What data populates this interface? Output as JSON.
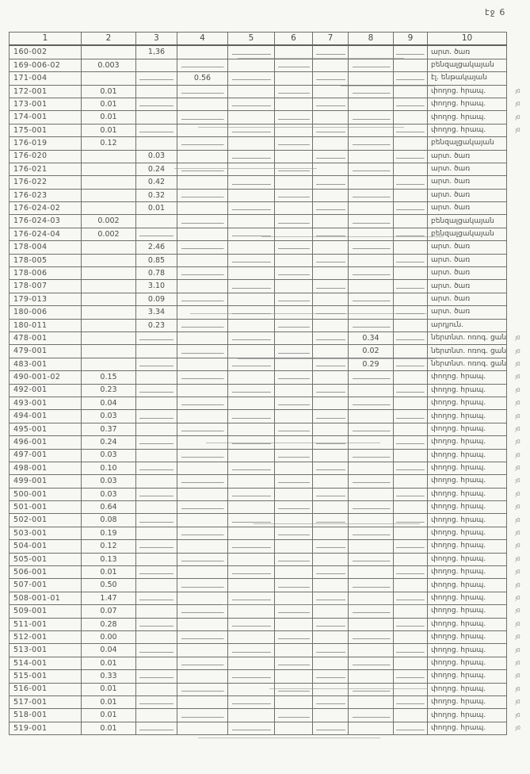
{
  "page": {
    "label": "էջ 6"
  },
  "colors": {
    "paper": "#f7f7f4",
    "ink": "#4d4d4d",
    "line": "#6f6f6f"
  },
  "table": {
    "headers": [
      "1",
      "2",
      "3",
      "4",
      "5",
      "6",
      "7",
      "8",
      "9",
      "10"
    ],
    "rows": [
      {
        "cells": [
          "160-002",
          "",
          "1,36",
          "",
          "",
          "",
          "",
          "",
          "",
          "արտ. ծառ"
        ],
        "mark": ""
      },
      {
        "cells": [
          "169-006-02",
          "0.003",
          "",
          "",
          "",
          "",
          "",
          "",
          "",
          "բենզալցակայան"
        ],
        "mark": ""
      },
      {
        "cells": [
          "171-004",
          "",
          "",
          "0.56",
          "",
          "",
          "",
          "",
          "",
          "էլ. ենթակայան"
        ],
        "mark": ""
      },
      {
        "cells": [
          "172-001",
          "0.01",
          "",
          "",
          "",
          "",
          "",
          "",
          "",
          "փողոց. հրապ."
        ],
        "mark": "յ0"
      },
      {
        "cells": [
          "173-001",
          "0.01",
          "",
          "",
          "",
          "",
          "",
          "",
          "",
          "փողոց. հրապ."
        ],
        "mark": "յ0"
      },
      {
        "cells": [
          "174-001",
          "0.01",
          "",
          "",
          "",
          "",
          "",
          "",
          "",
          "փողոց. հրապ."
        ],
        "mark": "յ0"
      },
      {
        "cells": [
          "175-001",
          "0.01",
          "",
          "",
          "",
          "",
          "",
          "",
          "",
          "փողոց. հրապ."
        ],
        "mark": "յ0"
      },
      {
        "cells": [
          "176-019",
          "0.12",
          "",
          "",
          "",
          "",
          "",
          "",
          "",
          "բենզալցակայան"
        ],
        "mark": ""
      },
      {
        "cells": [
          "176-020",
          "",
          "0.03",
          "",
          "",
          "",
          "",
          "",
          "",
          "արտ. ծառ"
        ],
        "mark": ""
      },
      {
        "cells": [
          "176-021",
          "",
          "0.24",
          "",
          "",
          "",
          "",
          "",
          "",
          "արտ. ծառ"
        ],
        "mark": ""
      },
      {
        "cells": [
          "176-022",
          "",
          "0.42",
          "",
          "",
          "",
          "",
          "",
          "",
          "արտ. ծառ"
        ],
        "mark": ""
      },
      {
        "cells": [
          "176-023",
          "",
          "0.32",
          "",
          "",
          "",
          "",
          "",
          "",
          "արտ. ծառ"
        ],
        "mark": ""
      },
      {
        "cells": [
          "176-024-02",
          "",
          "0.01",
          "",
          "",
          "",
          "",
          "",
          "",
          "արտ. ծառ"
        ],
        "mark": ""
      },
      {
        "cells": [
          "176-024-03",
          "0.002",
          "",
          "",
          "",
          "",
          "",
          "",
          "",
          "բենզալցակայան"
        ],
        "mark": ""
      },
      {
        "cells": [
          "176-024-04",
          "0.002",
          "",
          "",
          "",
          "",
          "",
          "",
          "",
          "բենզալցակայան"
        ],
        "mark": ""
      },
      {
        "cells": [
          "178-004",
          "",
          "2.46",
          "",
          "",
          "",
          "",
          "",
          "",
          "արտ. ծառ"
        ],
        "mark": ""
      },
      {
        "cells": [
          "178-005",
          "",
          "0.85",
          "",
          "",
          "",
          "",
          "",
          "",
          "արտ. ծառ"
        ],
        "mark": ""
      },
      {
        "cells": [
          "178-006",
          "",
          "0.78",
          "",
          "",
          "",
          "",
          "",
          "",
          "արտ. ծառ"
        ],
        "mark": ""
      },
      {
        "cells": [
          "178-007",
          "",
          "3.10",
          "",
          "",
          "",
          "",
          "",
          "",
          "արտ. ծառ"
        ],
        "mark": ""
      },
      {
        "cells": [
          "179-013",
          "",
          "0.09",
          "",
          "",
          "",
          "",
          "",
          "",
          "արտ. ծառ"
        ],
        "mark": ""
      },
      {
        "cells": [
          "180-006",
          "",
          "3.34",
          "",
          "",
          "",
          "",
          "",
          "",
          "արտ. ծառ"
        ],
        "mark": ""
      },
      {
        "cells": [
          "180-011",
          "",
          "0.23",
          "",
          "",
          "",
          "",
          "",
          "",
          "արդյուն."
        ],
        "mark": ""
      },
      {
        "cells": [
          "478-001",
          "",
          "",
          "",
          "",
          "",
          "",
          "0.34",
          "",
          "ներտնտ. ոռոգ. ցանց"
        ],
        "mark": "յ0"
      },
      {
        "cells": [
          "479-001",
          "",
          "",
          "",
          "",
          "",
          "",
          "0.02",
          "",
          "ներտնտ. ոռոգ. ցանց"
        ],
        "mark": "յ0"
      },
      {
        "cells": [
          "483-001",
          "",
          "",
          "",
          "",
          "",
          "",
          "0.29",
          "",
          "ներտնտ. ոռոգ. ցանց"
        ],
        "mark": "յ0"
      },
      {
        "cells": [
          "490-001-02",
          "0.15",
          "",
          "",
          "",
          "",
          "",
          "",
          "",
          "փողոց. հրապ."
        ],
        "mark": "յ0"
      },
      {
        "cells": [
          "492-001",
          "0.23",
          "",
          "",
          "",
          "",
          "",
          "",
          "",
          "փողոց. հրապ."
        ],
        "mark": "յ0"
      },
      {
        "cells": [
          "493-001",
          "0.04",
          "",
          "",
          "",
          "",
          "",
          "",
          "",
          "փողոց. հրապ."
        ],
        "mark": "յ0"
      },
      {
        "cells": [
          "494-001",
          "0.03",
          "",
          "",
          "",
          "",
          "",
          "",
          "",
          "փողոց. հրապ."
        ],
        "mark": "յ0"
      },
      {
        "cells": [
          "495-001",
          "0.37",
          "",
          "",
          "",
          "",
          "",
          "",
          "",
          "փողոց. հրապ."
        ],
        "mark": "յ0"
      },
      {
        "cells": [
          "496-001",
          "0.24",
          "",
          "",
          "",
          "",
          "",
          "",
          "",
          "փողոց. հրապ."
        ],
        "mark": "յ0"
      },
      {
        "cells": [
          "497-001",
          "0.03",
          "",
          "",
          "",
          "",
          "",
          "",
          "",
          "փողոց. հրապ."
        ],
        "mark": "յ0"
      },
      {
        "cells": [
          "498-001",
          "0.10",
          "",
          "",
          "",
          "",
          "",
          "",
          "",
          "փողոց. հրապ."
        ],
        "mark": "յ0"
      },
      {
        "cells": [
          "499-001",
          "0.03",
          "",
          "",
          "",
          "",
          "",
          "",
          "",
          "փողոց. հրապ."
        ],
        "mark": "յ0"
      },
      {
        "cells": [
          "500-001",
          "0.03",
          "",
          "",
          "",
          "",
          "",
          "",
          "",
          "փողոց. հրապ."
        ],
        "mark": "յ0"
      },
      {
        "cells": [
          "501-001",
          "0.64",
          "",
          "",
          "",
          "",
          "",
          "",
          "",
          "փողոց. հրապ."
        ],
        "mark": "յ0"
      },
      {
        "cells": [
          "502-001",
          "0.08",
          "",
          "",
          "",
          "",
          "",
          "",
          "",
          "փողոց. հրապ."
        ],
        "mark": "յ0"
      },
      {
        "cells": [
          "503-001",
          "0.19",
          "",
          "",
          "",
          "",
          "",
          "",
          "",
          "փողոց. հրապ."
        ],
        "mark": "յ0"
      },
      {
        "cells": [
          "504-001",
          "0.12",
          "",
          "",
          "",
          "",
          "",
          "",
          "",
          "փողոց. հրապ."
        ],
        "mark": "յ0"
      },
      {
        "cells": [
          "505-001",
          "0.13",
          "",
          "",
          "",
          "",
          "",
          "",
          "",
          "փողոց. հրապ."
        ],
        "mark": "յ0"
      },
      {
        "cells": [
          "506-001",
          "0.01",
          "",
          "",
          "",
          "",
          "",
          "",
          "",
          "փողոց. հրապ."
        ],
        "mark": "յ0"
      },
      {
        "cells": [
          "507-001",
          "0.50",
          "",
          "",
          "",
          "",
          "",
          "",
          "",
          "փողոց. հրապ."
        ],
        "mark": "յ0"
      },
      {
        "cells": [
          "508-001-01",
          "1.47",
          "",
          "",
          "",
          "",
          "",
          "",
          "",
          "փողոց. հրապ."
        ],
        "mark": "յ0"
      },
      {
        "cells": [
          "509-001",
          "0.07",
          "",
          "",
          "",
          "",
          "",
          "",
          "",
          "փողոց. հրապ."
        ],
        "mark": "յ0"
      },
      {
        "cells": [
          "511-001",
          "0.28",
          "",
          "",
          "",
          "",
          "",
          "",
          "",
          "փողոց. հրապ."
        ],
        "mark": "յ0"
      },
      {
        "cells": [
          "512-001",
          "0.00",
          "",
          "",
          "",
          "",
          "",
          "",
          "",
          "փողոց. հրապ."
        ],
        "mark": "յ0"
      },
      {
        "cells": [
          "513-001",
          "0.04",
          "",
          "",
          "",
          "",
          "",
          "",
          "",
          "փողոց. հրապ."
        ],
        "mark": "յ0"
      },
      {
        "cells": [
          "514-001",
          "0.01",
          "",
          "",
          "",
          "",
          "",
          "",
          "",
          "փողոց. հրապ."
        ],
        "mark": "յ0"
      },
      {
        "cells": [
          "515-001",
          "0.33",
          "",
          "",
          "",
          "",
          "",
          "",
          "",
          "փողոց. հրապ."
        ],
        "mark": "յ0"
      },
      {
        "cells": [
          "516-001",
          "0.01",
          "",
          "",
          "",
          "",
          "",
          "",
          "",
          "փողոց. հրապ."
        ],
        "mark": "յ0"
      },
      {
        "cells": [
          "517-001",
          "0.01",
          "",
          "",
          "",
          "",
          "",
          "",
          "",
          "փողոց. հրապ."
        ],
        "mark": "յ0"
      },
      {
        "cells": [
          "518-001",
          "0.01",
          "",
          "",
          "",
          "",
          "",
          "",
          "",
          "փողոց. հրապ."
        ],
        "mark": "յ0"
      },
      {
        "cells": [
          "519-001",
          "0.01",
          "",
          "",
          "",
          "",
          "",
          "",
          "",
          "փողոց. հրապ."
        ],
        "mark": "յ0"
      }
    ]
  }
}
